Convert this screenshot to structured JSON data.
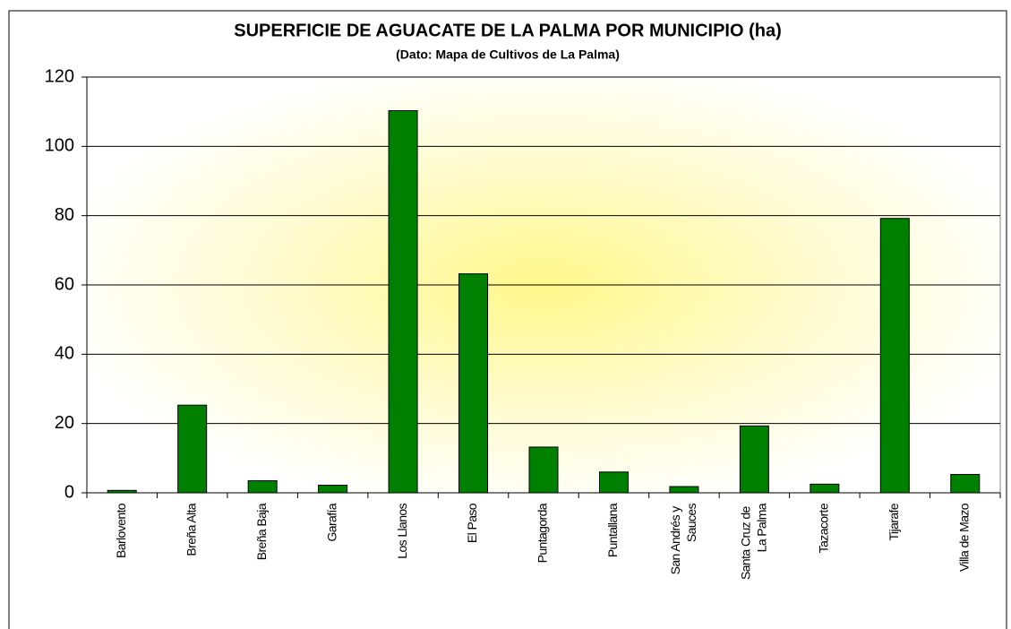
{
  "chart_data": {
    "type": "bar",
    "title": "SUPERFICIE DE AGUACATE DE LA PALMA POR MUNICIPIO (ha)",
    "subtitle": "(Dato: Mapa de Cultivos de La Palma)",
    "categories": [
      "Barlovento",
      "Breña Alta",
      "Breña Baja",
      "Garafía",
      "Los Llanos",
      "El Paso",
      "Puntagorda",
      "Puntallana",
      "San Andrés y Sauces",
      "Santa Cruz de La Palma",
      "Tazacorte",
      "Tijarafe",
      "Villa de Mazo"
    ],
    "values": [
      0.7,
      25.3,
      3.5,
      2.2,
      110.3,
      63.2,
      13.2,
      6,
      1.8,
      19.3,
      2.5,
      79.2,
      5.3
    ],
    "color": "#008000",
    "ylim": [
      0,
      120
    ],
    "yticks": [
      0,
      20,
      40,
      60,
      80,
      100,
      120
    ],
    "grid": true
  }
}
